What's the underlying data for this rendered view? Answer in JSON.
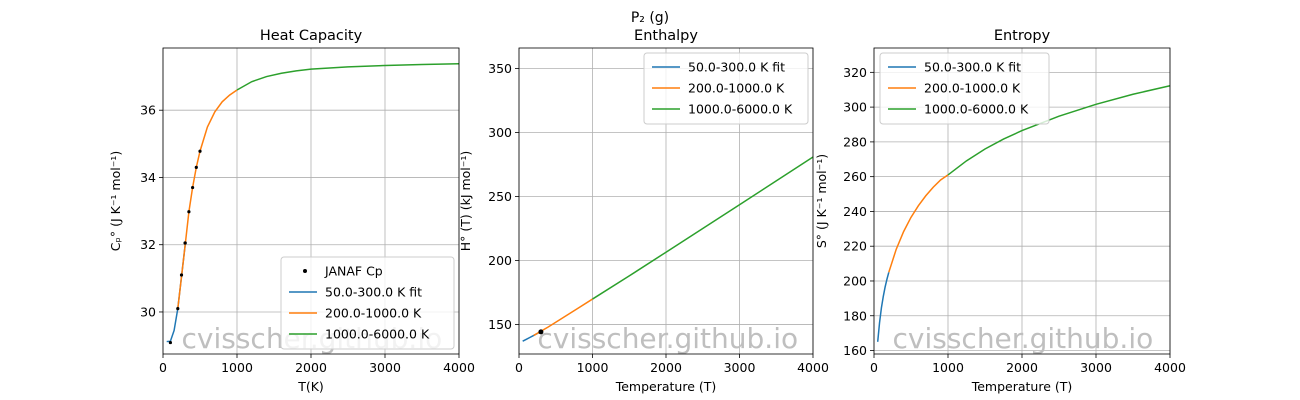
{
  "figure": {
    "suptitle": "P₂ (g)"
  },
  "watermark": "cvisscher.github.io",
  "colors": {
    "blue": "#1f77b4",
    "orange": "#ff7f0e",
    "green": "#2ca02c",
    "grid": "#b0b0b0",
    "watermark": "#bfbfbf",
    "point": "#000000"
  },
  "chart_data": [
    {
      "type": "line",
      "title": "Heat Capacity",
      "xlabel": "T(K)",
      "ylabel": "Cₚ° (J K⁻¹ mol⁻¹)",
      "xlim": [
        0,
        4000
      ],
      "ylim": [
        28.75,
        37.85
      ],
      "xticks": [
        0,
        1000,
        2000,
        3000,
        4000
      ],
      "yticks": [
        30,
        32,
        34,
        36
      ],
      "grid": true,
      "legend_position": "lower-right",
      "legend": [
        "JANAF Cp",
        "50.0-300.0 K fit",
        "200.0-1000.0 K",
        "1000.0-6000.0 K"
      ],
      "series": [
        {
          "name": "50.0-300.0 K fit",
          "color": "blue",
          "x": [
            50,
            100,
            150,
            200,
            250,
            300
          ],
          "y": [
            29.12,
            29.13,
            29.45,
            30.1,
            31.05,
            32.0
          ]
        },
        {
          "name": "200.0-1000.0 K",
          "color": "orange",
          "x": [
            200,
            250,
            300,
            350,
            400,
            450,
            500,
            600,
            700,
            800,
            900,
            1000
          ],
          "y": [
            30.1,
            31.05,
            32.0,
            32.98,
            33.7,
            34.3,
            34.78,
            35.5,
            35.95,
            36.25,
            36.45,
            36.6
          ]
        },
        {
          "name": "1000.0-6000.0 K",
          "color": "green",
          "x": [
            1000,
            1200,
            1400,
            1600,
            1800,
            2000,
            2500,
            3000,
            3500,
            4000
          ],
          "y": [
            36.6,
            36.85,
            37.0,
            37.1,
            37.17,
            37.22,
            37.29,
            37.33,
            37.36,
            37.38
          ]
        },
        {
          "name": "JANAF Cp",
          "type": "scatter",
          "color": "point",
          "x": [
            100,
            200,
            250,
            298.15,
            300,
            350,
            400,
            450,
            500
          ],
          "y": [
            29.09,
            30.1,
            31.1,
            32.05,
            32.05,
            32.98,
            33.7,
            34.3,
            34.78
          ]
        }
      ]
    },
    {
      "type": "line",
      "title": "Enthalpy",
      "xlabel": "Temperature (T)",
      "ylabel": "H° (T) (kJ mol⁻¹)",
      "xlim": [
        0,
        4000
      ],
      "ylim": [
        127,
        366
      ],
      "xticks": [
        0,
        1000,
        2000,
        3000,
        4000
      ],
      "yticks": [
        150,
        200,
        250,
        300,
        350
      ],
      "grid": true,
      "legend_position": "top-right",
      "legend": [
        "50.0-300.0 K fit",
        "200.0-1000.0 K",
        "1000.0-6000.0 K"
      ],
      "series": [
        {
          "name": "50.0-300.0 K fit",
          "color": "blue",
          "x": [
            50,
            100,
            150,
            200,
            250,
            300
          ],
          "y": [
            137.0,
            138.5,
            140.0,
            141.5,
            143.0,
            144.5
          ]
        },
        {
          "name": "200.0-1000.0 K",
          "color": "orange",
          "x": [
            200,
            400,
            600,
            800,
            1000
          ],
          "y": [
            141.5,
            148.2,
            155.4,
            162.6,
            169.9
          ]
        },
        {
          "name": "1000.0-6000.0 K",
          "color": "green",
          "x": [
            1000,
            1500,
            2000,
            2500,
            3000,
            3500,
            4000
          ],
          "y": [
            169.9,
            188.0,
            206.5,
            225.0,
            243.6,
            262.2,
            280.9
          ]
        },
        {
          "name": "",
          "type": "scatter",
          "color": "point",
          "x": [
            298.15
          ],
          "y": [
            144.3
          ]
        }
      ]
    },
    {
      "type": "line",
      "title": "Entropy",
      "xlabel": "Temperature (T)",
      "ylabel": "S° (J K⁻¹ mol⁻¹)",
      "xlim": [
        0,
        4000
      ],
      "ylim": [
        158,
        334
      ],
      "xticks": [
        0,
        1000,
        2000,
        3000,
        4000
      ],
      "yticks": [
        160,
        180,
        200,
        220,
        240,
        260,
        280,
        300,
        320
      ],
      "grid": true,
      "legend_position": "top-left",
      "legend": [
        "50.0-300.0 K fit",
        "200.0-1000.0 K",
        "1000.0-6000.0 K"
      ],
      "series": [
        {
          "name": "50.0-300.0 K fit",
          "color": "blue",
          "x": [
            50,
            75,
            100,
            125,
            150,
            175,
            200
          ],
          "y": [
            165.0,
            176.0,
            184.5,
            191.0,
            196.5,
            201.0,
            205.0
          ]
        },
        {
          "name": "200.0-1000.0 K",
          "color": "orange",
          "x": [
            200,
            300,
            400,
            500,
            600,
            700,
            800,
            900,
            1000
          ],
          "y": [
            205.0,
            218.2,
            228.4,
            236.6,
            243.3,
            249.0,
            253.9,
            258.1,
            261.0
          ]
        },
        {
          "name": "1000.0-6000.0 K",
          "color": "green",
          "x": [
            1000,
            1250,
            1500,
            1750,
            2000,
            2500,
            3000,
            3500,
            4000
          ],
          "y": [
            261.0,
            269.1,
            275.9,
            281.6,
            286.5,
            294.8,
            301.6,
            307.4,
            312.3
          ]
        }
      ]
    }
  ]
}
